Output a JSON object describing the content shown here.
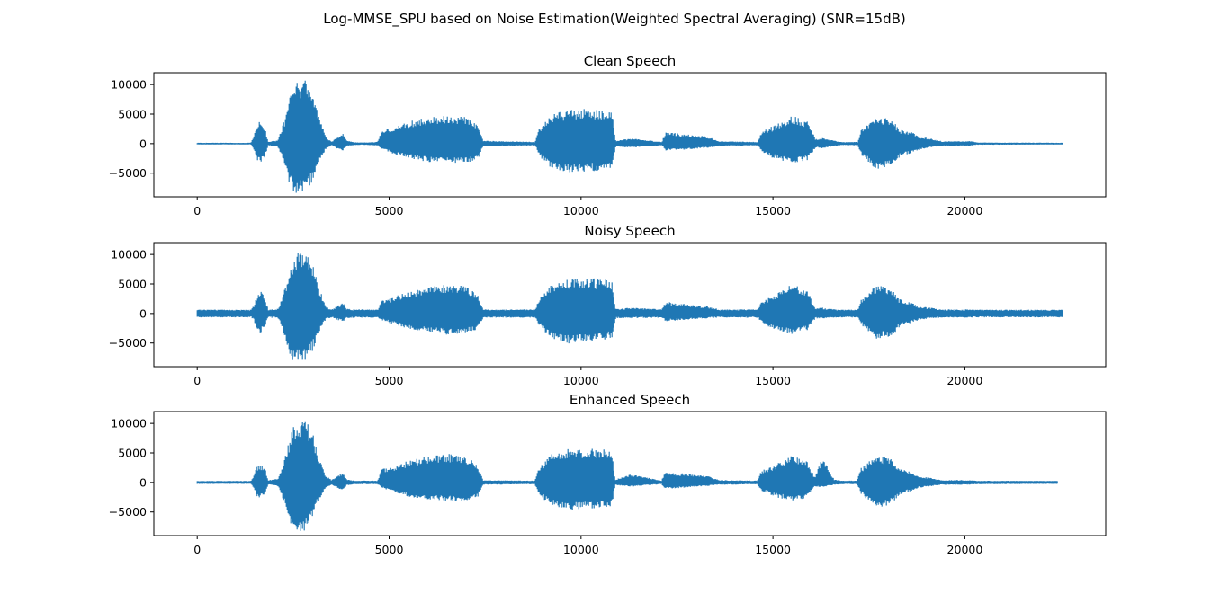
{
  "figure": {
    "suptitle": "Log-MMSE_SPU based on Noise Estimation(Weighted Spectral Averaging) (SNR=15dB)"
  },
  "colors": {
    "series": "#1f77b4",
    "axis": "#000000",
    "background": "#ffffff"
  },
  "chart_data": [
    {
      "type": "line",
      "title": "Clean Speech",
      "xlabel": "",
      "ylabel": "",
      "xlim": [
        -1130,
        23670
      ],
      "ylim": [
        -9000,
        12000
      ],
      "xticks": [
        0,
        5000,
        10000,
        15000,
        20000
      ],
      "xtick_labels": [
        "0",
        "5000",
        "10000",
        "15000",
        "20000"
      ],
      "yticks": [
        -5000,
        0,
        5000,
        10000
      ],
      "ytick_labels": [
        "−5000",
        "0",
        "5000",
        "10000"
      ],
      "grid": false,
      "n_samples": 22540,
      "noise_floor": 120,
      "envelope": {
        "x": [
          0,
          1400,
          1480,
          1550,
          1650,
          1760,
          1850,
          2100,
          2200,
          2300,
          2450,
          2600,
          2750,
          2850,
          3000,
          3150,
          3350,
          3500,
          3700,
          3800,
          3900,
          4100,
          4300,
          4700,
          4800,
          5000,
          5500,
          6000,
          6500,
          7000,
          7300,
          7450,
          8800,
          8900,
          9200,
          9700,
          10200,
          10600,
          10800,
          10900,
          11300,
          12100,
          12200,
          12700,
          13300,
          13600,
          14600,
          14700,
          15000,
          15500,
          15900,
          16100,
          16300,
          16600,
          16800,
          17200,
          17300,
          17700,
          18100,
          18300,
          18600,
          18800,
          19100,
          19400,
          20000,
          20100,
          20300,
          22540
        ],
        "max": [
          150,
          150,
          1400,
          3200,
          4000,
          2800,
          300,
          600,
          2500,
          4800,
          9000,
          10500,
          11000,
          10500,
          9000,
          5000,
          1200,
          300,
          1400,
          1800,
          500,
          250,
          200,
          300,
          2400,
          2500,
          3800,
          4500,
          4800,
          4600,
          3200,
          500,
          300,
          2500,
          4800,
          5900,
          5900,
          5800,
          5500,
          500,
          900,
          300,
          2000,
          1600,
          1200,
          400,
          300,
          2200,
          3000,
          4800,
          3800,
          800,
          1000,
          500,
          250,
          300,
          2500,
          4900,
          4000,
          2400,
          2000,
          1200,
          900,
          400,
          400,
          500,
          200,
          150
        ],
        "min": [
          -150,
          -150,
          -1200,
          -2800,
          -3300,
          -2400,
          -300,
          -600,
          -2300,
          -4500,
          -8000,
          -8500,
          -8600,
          -7800,
          -6500,
          -3500,
          -900,
          -300,
          -1100,
          -1200,
          -400,
          -250,
          -200,
          -300,
          -1000,
          -1500,
          -2500,
          -3100,
          -3300,
          -3300,
          -2800,
          -500,
          -300,
          -2000,
          -4200,
          -4900,
          -4700,
          -4500,
          -4200,
          -500,
          -700,
          -300,
          -1200,
          -1000,
          -700,
          -400,
          -300,
          -1500,
          -2500,
          -3300,
          -2800,
          -700,
          -800,
          -400,
          -250,
          -300,
          -2000,
          -4500,
          -3800,
          -2200,
          -1600,
          -1000,
          -700,
          -400,
          -400,
          -400,
          -200,
          -150
        ]
      }
    },
    {
      "type": "line",
      "title": "Noisy Speech",
      "xlabel": "",
      "ylabel": "",
      "xlim": [
        -1130,
        23670
      ],
      "ylim": [
        -9000,
        12000
      ],
      "xticks": [
        0,
        5000,
        10000,
        15000,
        20000
      ],
      "xtick_labels": [
        "0",
        "5000",
        "10000",
        "15000",
        "20000"
      ],
      "yticks": [
        -5000,
        0,
        5000,
        10000
      ],
      "ytick_labels": [
        "−5000",
        "0",
        "5000",
        "10000"
      ],
      "grid": false,
      "n_samples": 22540,
      "noise_floor": 650,
      "envelope": {
        "x": [
          0,
          1400,
          1480,
          1550,
          1650,
          1760,
          1850,
          2100,
          2200,
          2300,
          2450,
          2600,
          2750,
          2850,
          3000,
          3150,
          3350,
          3500,
          3700,
          3800,
          3900,
          4100,
          4300,
          4700,
          4800,
          5000,
          5500,
          6000,
          6500,
          7000,
          7300,
          7450,
          8800,
          8900,
          9200,
          9700,
          10200,
          10600,
          10800,
          10900,
          11300,
          12100,
          12200,
          12700,
          13300,
          13600,
          14600,
          14700,
          15000,
          15500,
          15900,
          16100,
          16300,
          16600,
          16800,
          17200,
          17300,
          17700,
          18100,
          18300,
          18600,
          18800,
          19100,
          19400,
          20000,
          20100,
          20300,
          22540
        ],
        "max": [
          650,
          650,
          1400,
          3200,
          4200,
          2800,
          700,
          800,
          2500,
          4800,
          9000,
          10500,
          11000,
          10500,
          9000,
          5000,
          1300,
          700,
          1500,
          1800,
          800,
          700,
          700,
          700,
          2400,
          2500,
          3800,
          4500,
          5000,
          4600,
          3200,
          700,
          700,
          2500,
          4800,
          5900,
          6000,
          5800,
          5500,
          800,
          1000,
          700,
          2000,
          1600,
          1200,
          700,
          700,
          2200,
          3000,
          5000,
          3800,
          900,
          1000,
          700,
          650,
          700,
          2500,
          4900,
          4000,
          2400,
          2000,
          1200,
          1000,
          700,
          700,
          700,
          650,
          650
        ],
        "min": [
          -650,
          -650,
          -1200,
          -2800,
          -3300,
          -2400,
          -700,
          -800,
          -2300,
          -4500,
          -8000,
          -8500,
          -8600,
          -7800,
          -6500,
          -3500,
          -1000,
          -700,
          -1200,
          -1300,
          -800,
          -700,
          -700,
          -700,
          -1100,
          -1600,
          -2600,
          -3100,
          -3600,
          -3300,
          -2800,
          -700,
          -700,
          -2000,
          -4200,
          -5100,
          -4700,
          -4500,
          -4200,
          -800,
          -800,
          -700,
          -1300,
          -1100,
          -800,
          -700,
          -700,
          -1600,
          -2600,
          -3500,
          -2800,
          -800,
          -900,
          -700,
          -650,
          -700,
          -2000,
          -4500,
          -3800,
          -2200,
          -1600,
          -1100,
          -800,
          -700,
          -700,
          -700,
          -650,
          -650
        ]
      }
    },
    {
      "type": "line",
      "title": "Enhanced Speech",
      "xlabel": "",
      "ylabel": "",
      "xlim": [
        -1130,
        23670
      ],
      "ylim": [
        -9000,
        12000
      ],
      "xticks": [
        0,
        5000,
        10000,
        15000,
        20000
      ],
      "xtick_labels": [
        "0",
        "5000",
        "10000",
        "15000",
        "20000"
      ],
      "yticks": [
        -5000,
        0,
        5000,
        10000
      ],
      "ytick_labels": [
        "−5000",
        "0",
        "5000",
        "10000"
      ],
      "grid": false,
      "n_samples": 22420,
      "noise_floor": 250,
      "envelope": {
        "x": [
          0,
          1400,
          1480,
          1550,
          1650,
          1760,
          1850,
          2100,
          2200,
          2300,
          2450,
          2600,
          2750,
          2850,
          3000,
          3150,
          3350,
          3500,
          3700,
          3800,
          3900,
          4100,
          4300,
          4700,
          4800,
          5000,
          5500,
          6000,
          6500,
          7000,
          7300,
          7450,
          8800,
          8900,
          9200,
          9700,
          10200,
          10600,
          10800,
          10900,
          11300,
          12100,
          12200,
          12700,
          13300,
          13600,
          14600,
          14700,
          15000,
          15500,
          15900,
          16100,
          16300,
          16600,
          16800,
          17200,
          17300,
          17700,
          18100,
          18300,
          18600,
          18800,
          19100,
          19400,
          20000,
          20100,
          20300,
          22420
        ],
        "max": [
          250,
          250,
          1200,
          2800,
          3000,
          2600,
          400,
          600,
          2400,
          4700,
          8800,
          10300,
          11000,
          10400,
          8800,
          4800,
          1200,
          400,
          1400,
          1800,
          500,
          300,
          300,
          300,
          2300,
          2400,
          3700,
          4500,
          4900,
          4500,
          3100,
          400,
          300,
          2400,
          4700,
          5800,
          5800,
          5700,
          5400,
          500,
          1400,
          300,
          1800,
          1500,
          1100,
          400,
          300,
          2000,
          2800,
          4600,
          3600,
          800,
          4500,
          500,
          300,
          300,
          2400,
          4800,
          3900,
          2300,
          1900,
          1100,
          800,
          400,
          400,
          400,
          300,
          250
        ],
        "min": [
          -250,
          -250,
          -1000,
          -2400,
          -2700,
          -2200,
          -400,
          -600,
          -2200,
          -4300,
          -7800,
          -8400,
          -8800,
          -7700,
          -6300,
          -3400,
          -900,
          -400,
          -1100,
          -1200,
          -500,
          -300,
          -300,
          -300,
          -900,
          -1400,
          -2400,
          -3000,
          -3200,
          -3200,
          -2700,
          -400,
          -300,
          -1900,
          -4000,
          -4800,
          -4600,
          -4400,
          -4100,
          -500,
          -700,
          -300,
          -1100,
          -900,
          -600,
          -400,
          -300,
          -1400,
          -2400,
          -3200,
          -2700,
          -700,
          -800,
          -400,
          -300,
          -300,
          -1900,
          -4400,
          -3700,
          -2100,
          -1500,
          -900,
          -700,
          -400,
          -400,
          -400,
          -300,
          -250
        ]
      }
    }
  ]
}
